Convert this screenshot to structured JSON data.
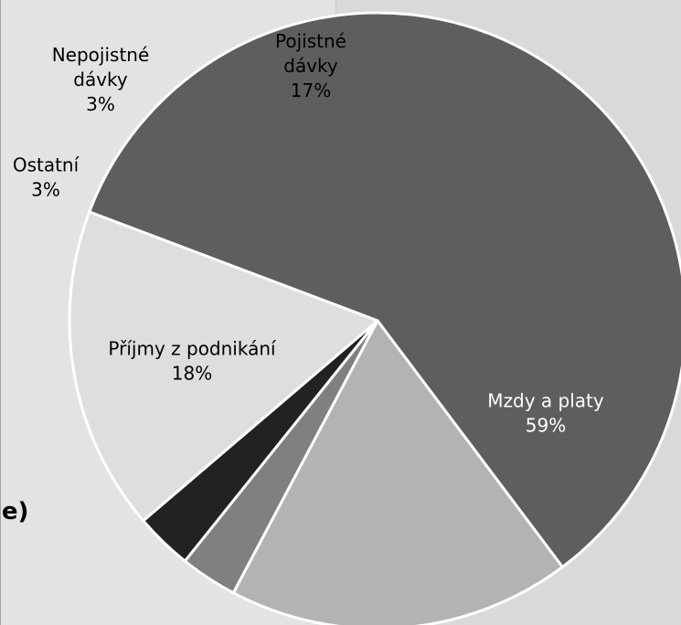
{
  "page": {
    "clipped_text": "je)"
  },
  "chart_data": {
    "type": "pie",
    "slices": [
      {
        "label_lines": [
          "Mzdy a platy"
        ],
        "percent_label": "59%",
        "value": 59,
        "color": "#5e5e5e",
        "label_color": "#ffffff"
      },
      {
        "label_lines": [
          "Příjmy z podnikání"
        ],
        "percent_label": "18%",
        "value": 18,
        "color": "#b3b3b3",
        "label_color": "#000000"
      },
      {
        "label_lines": [
          "Ostatní"
        ],
        "percent_label": "3%",
        "value": 3,
        "color": "#808080",
        "label_color": "#000000"
      },
      {
        "label_lines": [
          "Nepojistné",
          "dávky"
        ],
        "percent_label": "3%",
        "value": 3,
        "color": "#222222",
        "label_color": "#000000"
      },
      {
        "label_lines": [
          "Pojistné",
          "dávky"
        ],
        "percent_label": "17%",
        "value": 17,
        "color": "#dedede",
        "label_color": "#000000"
      }
    ]
  }
}
